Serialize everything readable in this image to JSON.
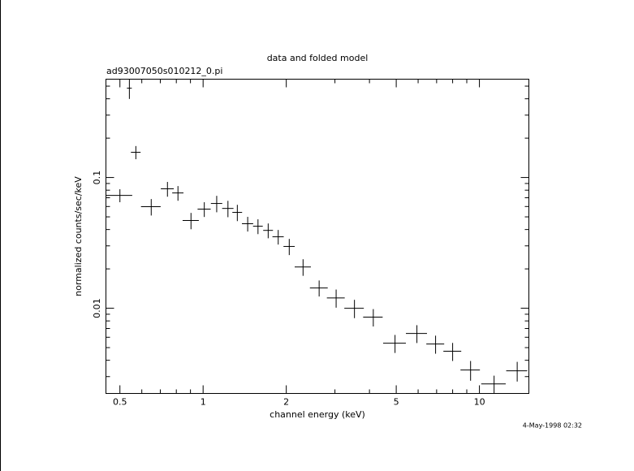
{
  "chart_data": {
    "type": "scatter",
    "title": "data and folded model",
    "subtitle": "ad93007050s010212_0.pi",
    "x_label": "channel energy (keV)",
    "y_label": "normalized counts/sec/keV",
    "footnote": "4-May-1998 02:32",
    "x_log": true,
    "y_log": true,
    "color": "#000000",
    "xlim": [
      0.445,
      15.1
    ],
    "ylim": [
      0.00223,
      0.565
    ],
    "xticks": [
      0.5,
      1,
      2,
      5,
      10
    ],
    "yticks": [
      0.1,
      0.01
    ],
    "xminorticks": [
      0.6,
      0.7,
      0.8,
      0.9,
      3,
      4,
      6,
      7,
      8,
      9
    ],
    "yminorticks": [
      0.003,
      0.004,
      0.005,
      0.006,
      0.007,
      0.008,
      0.009,
      0.02,
      0.03,
      0.04,
      0.05,
      0.06,
      0.07,
      0.08,
      0.09,
      0.2,
      0.3,
      0.4,
      0.5
    ],
    "x": [
      0.5,
      0.541,
      0.571,
      0.649,
      0.743,
      0.811,
      0.904,
      1.01,
      1.12,
      1.23,
      1.33,
      1.45,
      1.58,
      1.72,
      1.87,
      2.05,
      2.3,
      2.63,
      3.03,
      3.53,
      4.13,
      4.95,
      5.94,
      6.94,
      8.0,
      9.29,
      11.3,
      13.7
    ],
    "xerr": [
      0.054,
      0.011,
      0.023,
      0.053,
      0.04,
      0.038,
      0.061,
      0.055,
      0.053,
      0.058,
      0.054,
      0.068,
      0.064,
      0.07,
      0.088,
      0.096,
      0.155,
      0.195,
      0.225,
      0.286,
      0.335,
      0.468,
      0.52,
      0.516,
      0.594,
      0.75,
      1.15,
      1.2
    ],
    "values": [
      0.073,
      0.482,
      0.156,
      0.0598,
      0.0819,
      0.0762,
      0.0469,
      0.0573,
      0.0633,
      0.058,
      0.0541,
      0.0443,
      0.0424,
      0.0394,
      0.0352,
      0.0297,
      0.0207,
      0.0143,
      0.012,
      0.01,
      0.00855,
      0.0054,
      0.00642,
      0.00533,
      0.00469,
      0.00337,
      0.00264,
      0.00332
    ],
    "yerr": [
      0.0083,
      0.083,
      0.018,
      0.0086,
      0.0106,
      0.0098,
      0.0067,
      0.0074,
      0.0091,
      0.0083,
      0.0077,
      0.0057,
      0.0055,
      0.0051,
      0.0045,
      0.0042,
      0.003,
      0.002,
      0.0019,
      0.0016,
      0.0013,
      0.00085,
      0.001,
      0.00084,
      0.00074,
      0.00058,
      0.00041,
      0.00057
    ]
  }
}
